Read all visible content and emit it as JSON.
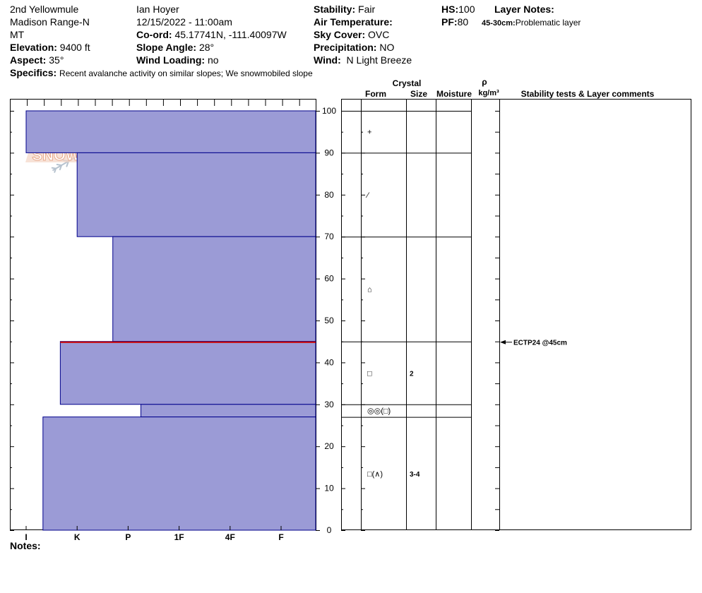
{
  "header": {
    "location": "2nd Yellowmule",
    "range": "Madison Range-N",
    "state": "MT",
    "elevation_label": "Elevation:",
    "elevation_value": "9400 ft",
    "aspect_label": "Aspect:",
    "aspect_value": "35°",
    "specifics_label": "Specifics:",
    "specifics_value": "Recent avalanche activity on similar slopes; We snowmobiled slope",
    "observer": "Ian Hoyer",
    "datetime": "12/15/2022 - 11:00am",
    "coord_label": "Co-ord:",
    "coord_value": "45.17741N, -111.40097W",
    "slope_label": "Slope Angle:",
    "slope_value": "28°",
    "wind_loading_label": "Wind Loading:",
    "wind_loading_value": "no",
    "stability_label": "Stability:",
    "stability_value": "Fair",
    "air_temp_label": "Air Temperature:",
    "air_temp_value": "",
    "sky_label": "Sky Cover:",
    "sky_value": "OVC",
    "precip_label": "Precipitation:",
    "precip_value": "NO",
    "wind_label": "Wind:",
    "wind_value": "N Light Breeze",
    "hs_label": "HS:",
    "hs_value": "100",
    "pf_label": "PF:",
    "pf_value": "80",
    "layer_notes_label": "Layer Notes:",
    "layer_note_range": "45-30cm:",
    "layer_note_text": "Problematic layer"
  },
  "logo": {
    "text": "SNOW PILOT",
    "color": "#e8a88a"
  },
  "columns": {
    "crystal": "Crystal",
    "form": "Form",
    "size": "Size",
    "moisture": "Moisture",
    "rho": "ρ",
    "density_unit": "kg/m³",
    "stability": "Stability tests & Layer comments"
  },
  "notes_label": "Notes:",
  "chart_data": {
    "type": "bar",
    "title": "",
    "hardness_labels": [
      "I",
      "K",
      "P",
      "1F",
      "4F",
      "F"
    ],
    "y_ticks": [
      0,
      10,
      20,
      30,
      40,
      50,
      60,
      70,
      80,
      90,
      100
    ],
    "ylim": [
      0,
      100
    ],
    "layers": [
      {
        "top": 100,
        "bottom": 90,
        "hardness_index": 0
      },
      {
        "top": 90,
        "bottom": 70,
        "hardness_index": 1
      },
      {
        "top": 70,
        "bottom": 45,
        "hardness_index": 1.7
      },
      {
        "top": 45,
        "bottom": 30,
        "hardness_index": 0.67
      },
      {
        "top": 30,
        "bottom": 27,
        "hardness_index": 2.25
      },
      {
        "top": 27,
        "bottom": 0,
        "hardness_index": 0.33
      }
    ],
    "layer_boundaries": [
      100,
      90,
      70,
      45,
      30,
      27
    ],
    "problem_layer_depth": 45,
    "fill_color": "#9b9bd6",
    "edge_color": "#00008b",
    "problem_color": "#cc0000",
    "crystals": [
      {
        "depth": 95,
        "form": "+",
        "size": ""
      },
      {
        "depth": 80,
        "form": "⁄",
        "size": ""
      },
      {
        "depth": 57.5,
        "form": "⌂",
        "size": ""
      },
      {
        "depth": 37.5,
        "form": "□",
        "size": "2"
      },
      {
        "depth": 28.5,
        "form": "◎◎(□)",
        "size": ""
      },
      {
        "depth": 13.5,
        "form": "□(∧)",
        "size": "3-4"
      }
    ],
    "stability_tests": [
      {
        "depth": 45,
        "label": "ECTP24 @45cm"
      }
    ]
  }
}
